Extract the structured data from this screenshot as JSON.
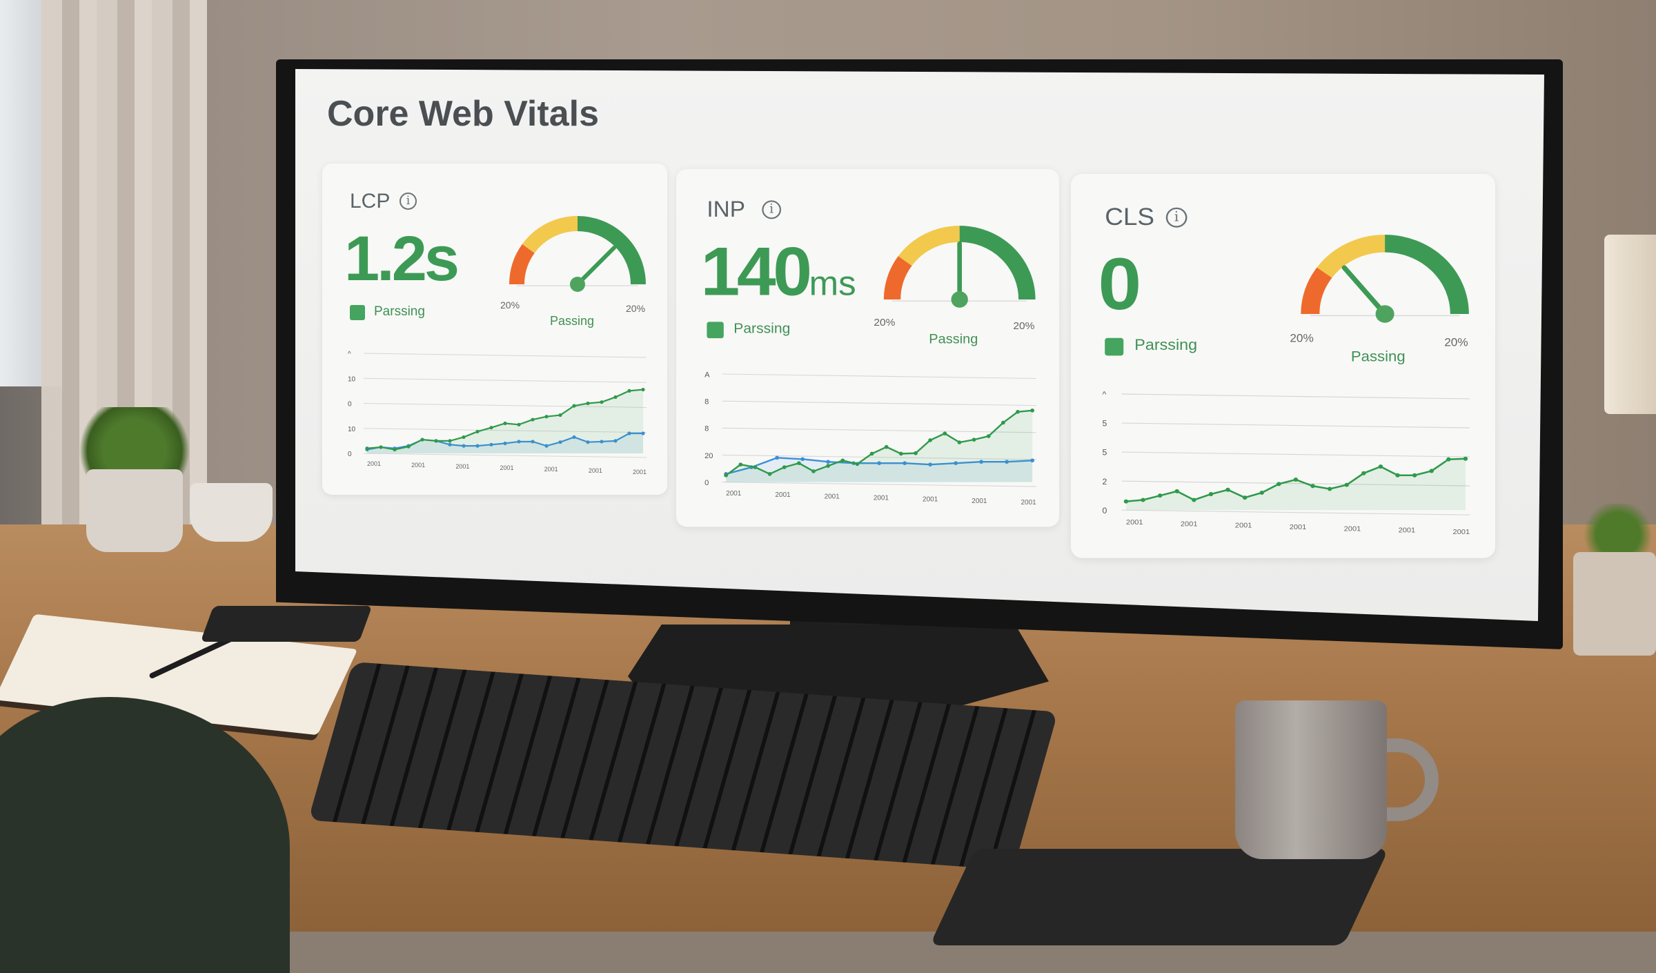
{
  "page": {
    "title": "Core Web Vitals"
  },
  "colors": {
    "good": "#3d9a55",
    "needs_improvement": "#f2c94c",
    "poor": "#ee6a2c",
    "series_primary": "#2e9a4a",
    "series_secondary": "#3b8fdc"
  },
  "cards": [
    {
      "metric": "LCP",
      "info_icon": "info-icon",
      "value": "1.2s",
      "unit": "",
      "legend_label": "Parssing",
      "gauge_left_label": "20%",
      "gauge_right_label": "20%",
      "gauge_status": "Passing",
      "gauge_level": 0.75,
      "chart_data": {
        "type": "line",
        "y_ticks": [
          "0",
          "10",
          "0",
          "10",
          "^"
        ],
        "x_ticks": [
          "2001",
          "2001",
          "2001",
          "2001",
          "2001",
          "2001",
          "2001"
        ],
        "ylim": [
          0,
          4
        ],
        "grid": true,
        "series": [
          {
            "color": "#2e9a4a",
            "values": [
              0.2,
              0.25,
              0.15,
              0.27,
              0.55,
              0.5,
              0.5,
              0.65,
              0.87,
              1.03,
              1.2,
              1.15,
              1.35,
              1.47,
              1.53,
              1.9,
              2.0,
              2.05,
              2.25,
              2.5,
              2.55
            ]
          },
          {
            "color": "#3b8fdc",
            "values": [
              0.15,
              0.25,
              0.2,
              0.3,
              0.55,
              0.5,
              0.35,
              0.3,
              0.3,
              0.35,
              0.4,
              0.47,
              0.47,
              0.3,
              0.45,
              0.65,
              0.45,
              0.47,
              0.5,
              0.8,
              0.8
            ]
          }
        ]
      }
    },
    {
      "metric": "INP",
      "info_icon": "info-icon",
      "value": "140",
      "unit": "ms",
      "legend_label": "Parssing",
      "gauge_left_label": "20%",
      "gauge_right_label": "20%",
      "gauge_status": "Passing",
      "gauge_level": 0.5,
      "chart_data": {
        "type": "line",
        "y_ticks": [
          "0",
          "20",
          "8",
          "8",
          "A"
        ],
        "x_ticks": [
          "2001",
          "2001",
          "2001",
          "2001",
          "2001",
          "2001",
          "2001"
        ],
        "ylim": [
          0,
          4
        ],
        "grid": true,
        "series": [
          {
            "color": "#2e9a4a",
            "values": [
              0.25,
              0.65,
              0.55,
              0.3,
              0.55,
              0.7,
              0.4,
              0.6,
              0.8,
              0.67,
              1.05,
              1.3,
              1.05,
              1.07,
              1.55,
              1.8,
              1.47,
              1.57,
              1.7,
              2.2,
              2.6,
              2.65
            ]
          },
          {
            "color": "#3b8fdc",
            "values": [
              0.3,
              0.55,
              0.9,
              0.85,
              0.75,
              0.7,
              0.7,
              0.7,
              0.65,
              0.7,
              0.75,
              0.75,
              0.8
            ]
          }
        ]
      }
    },
    {
      "metric": "CLS",
      "info_icon": "info-icon",
      "value": "0",
      "unit": "",
      "legend_label": "Parssing",
      "gauge_left_label": "20%",
      "gauge_right_label": "20%",
      "gauge_status": "Passing",
      "gauge_level": 0.28,
      "chart_data": {
        "type": "line",
        "y_ticks": [
          "0",
          "2",
          "5",
          "5",
          "^"
        ],
        "x_ticks": [
          "2001",
          "2001",
          "2001",
          "2001",
          "2001",
          "2001",
          "2001"
        ],
        "ylim": [
          0,
          4
        ],
        "grid": true,
        "series": [
          {
            "color": "#2e9a4a",
            "values": [
              0.3,
              0.35,
              0.5,
              0.65,
              0.35,
              0.55,
              0.7,
              0.43,
              0.6,
              0.9,
              1.05,
              0.83,
              0.73,
              0.87,
              1.27,
              1.5,
              1.2,
              1.2,
              1.35,
              1.75,
              1.77
            ]
          }
        ]
      }
    }
  ]
}
